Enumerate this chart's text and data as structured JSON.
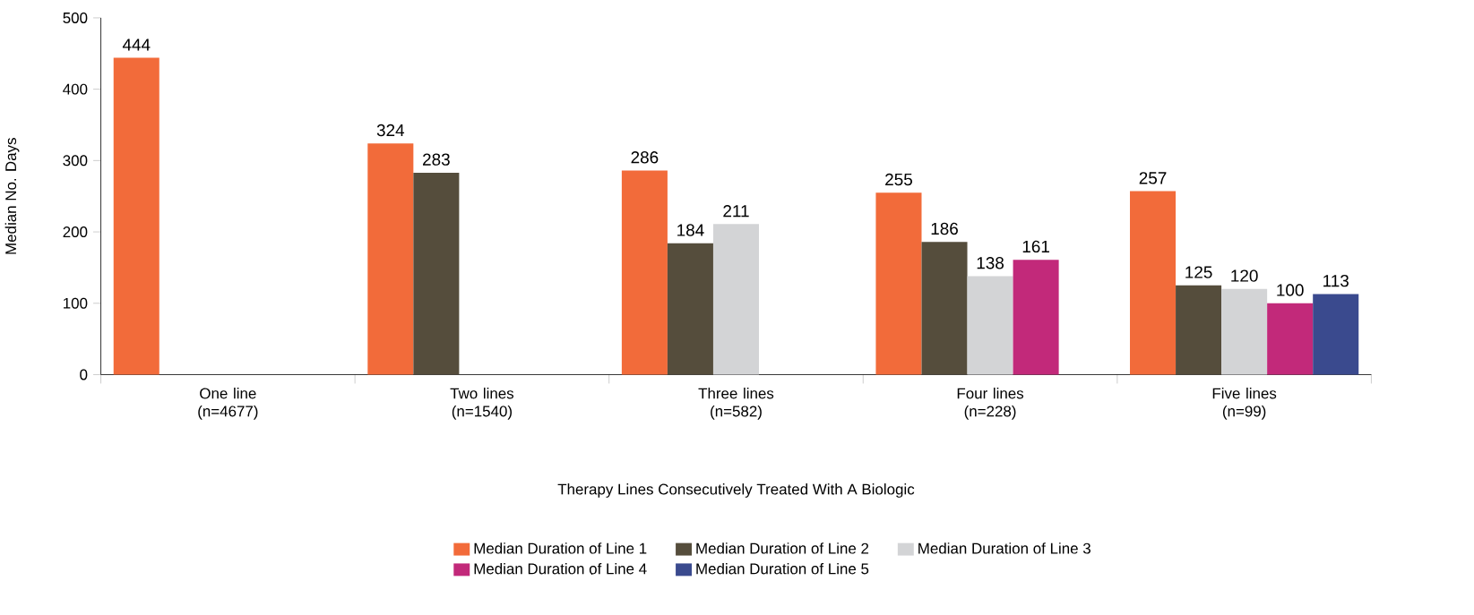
{
  "chart_data": {
    "type": "bar",
    "categories": [
      "One line (n=4677)",
      "Two lines (n=1540)",
      "Three lines (n=582)",
      "Four lines (n=228)",
      "Five lines (n=99)"
    ],
    "series": [
      {
        "name": "Median Duration of Line 1",
        "color": "#f26b3a",
        "values": [
          444,
          324,
          286,
          255,
          257
        ]
      },
      {
        "name": "Median Duration of Line 2",
        "color": "#554d3c",
        "values": [
          null,
          283,
          184,
          186,
          125
        ]
      },
      {
        "name": "Median Duration of Line 3",
        "color": "#d3d4d6",
        "values": [
          null,
          null,
          211,
          138,
          120
        ]
      },
      {
        "name": "Median Duration of Line 4",
        "color": "#c2297a",
        "values": [
          null,
          null,
          null,
          161,
          100
        ]
      },
      {
        "name": "Median Duration of Line 5",
        "color": "#3a4a8e",
        "values": [
          null,
          null,
          null,
          null,
          113
        ]
      }
    ],
    "xlabel": "Therapy Lines Consecutively Treated With A Biologic",
    "ylabel": "Median No. Days",
    "ylim": [
      0,
      500
    ],
    "yticks": [
      0,
      100,
      200,
      300,
      400,
      500
    ],
    "data_labels": true,
    "legend": "bottom",
    "grid": false
  }
}
